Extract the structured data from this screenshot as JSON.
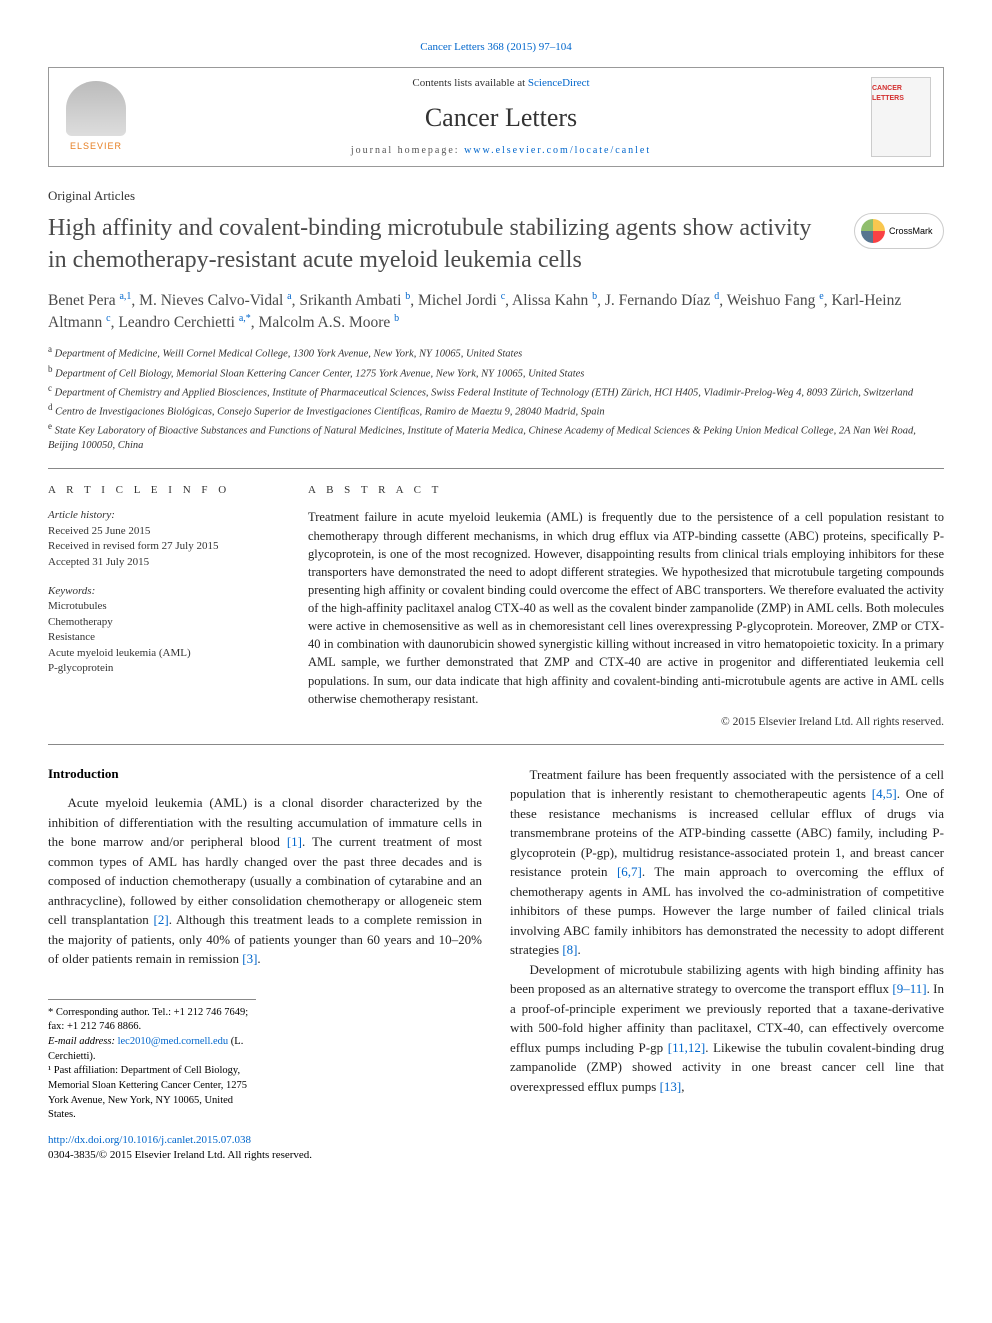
{
  "journal_ref": "Cancer Letters 368 (2015) 97–104",
  "header": {
    "contents_prefix": "Contents lists available at ",
    "contents_link": "ScienceDirect",
    "journal_title": "Cancer Letters",
    "homepage_prefix": "journal homepage: ",
    "homepage_link": "www.elsevier.com/locate/canlet",
    "elsevier_label": "ELSEVIER",
    "cover_label": "CANCER LETTERS"
  },
  "article_type": "Original Articles",
  "title": "High affinity and covalent-binding microtubule stabilizing agents show activity in chemotherapy-resistant acute myeloid leukemia cells",
  "crossmark": "CrossMark",
  "authors_html": "Benet Pera <sup>a,1</sup>, M. Nieves Calvo-Vidal <sup>a</sup>, Srikanth Ambati <sup>b</sup>, Michel Jordi <sup>c</sup>, Alissa Kahn <sup>b</sup>, J. Fernando Díaz <sup>d</sup>, Weishuo Fang <sup>e</sup>, Karl-Heinz Altmann <sup>c</sup>, Leandro Cerchietti <sup>a,*</sup>, Malcolm A.S. Moore <sup>b</sup>",
  "affiliations": [
    {
      "sup": "a",
      "text": "Department of Medicine, Weill Cornel Medical College, 1300 York Avenue, New York, NY 10065, United States"
    },
    {
      "sup": "b",
      "text": "Department of Cell Biology, Memorial Sloan Kettering Cancer Center, 1275 York Avenue, New York, NY 10065, United States"
    },
    {
      "sup": "c",
      "text": "Department of Chemistry and Applied Biosciences, Institute of Pharmaceutical Sciences, Swiss Federal Institute of Technology (ETH) Zürich, HCI H405, Vladimir-Prelog-Weg 4, 8093 Zürich, Switzerland"
    },
    {
      "sup": "d",
      "text": "Centro de Investigaciones Biológicas, Consejo Superior de Investigaciones Científicas, Ramiro de Maeztu 9, 28040 Madrid, Spain"
    },
    {
      "sup": "e",
      "text": "State Key Laboratory of Bioactive Substances and Functions of Natural Medicines, Institute of Materia Medica, Chinese Academy of Medical Sciences & Peking Union Medical College, 2A Nan Wei Road, Beijing 100050, China"
    }
  ],
  "info": {
    "heading": "A R T I C L E   I N F O",
    "history_heading": "Article history:",
    "history": [
      "Received 25 June 2015",
      "Received in revised form 27 July 2015",
      "Accepted 31 July 2015"
    ],
    "keywords_heading": "Keywords:",
    "keywords": [
      "Microtubules",
      "Chemotherapy",
      "Resistance",
      "Acute myeloid leukemia (AML)",
      "P-glycoprotein"
    ]
  },
  "abstract": {
    "heading": "A B S T R A C T",
    "text": "Treatment failure in acute myeloid leukemia (AML) is frequently due to the persistence of a cell population resistant to chemotherapy through different mechanisms, in which drug efflux via ATP-binding cassette (ABC) proteins, specifically P-glycoprotein, is one of the most recognized. However, disappointing results from clinical trials employing inhibitors for these transporters have demonstrated the need to adopt different strategies. We hypothesized that microtubule targeting compounds presenting high affinity or covalent binding could overcome the effect of ABC transporters. We therefore evaluated the activity of the high-affinity paclitaxel analog CTX-40 as well as the covalent binder zampanolide (ZMP) in AML cells. Both molecules were active in chemosensitive as well as in chemoresistant cell lines overexpressing P-glycoprotein. Moreover, ZMP or CTX-40 in combination with daunorubicin showed synergistic killing without increased in vitro hematopoietic toxicity. In a primary AML sample, we further demonstrated that ZMP and CTX-40 are active in progenitor and differentiated leukemia cell populations. In sum, our data indicate that high affinity and covalent-binding anti-microtubule agents are active in AML cells otherwise chemotherapy resistant.",
    "copyright": "© 2015 Elsevier Ireland Ltd. All rights reserved."
  },
  "body": {
    "intro_heading": "Introduction",
    "left_paras": [
      "Acute myeloid leukemia (AML) is a clonal disorder characterized by the inhibition of differentiation with the resulting accumulation of immature cells in the bone marrow and/or peripheral blood <a class='ref-link' href='#'>[1]</a>. The current treatment of most common types of AML has hardly changed over the past three decades and is composed of induction chemotherapy (usually a combination of cytarabine and an anthracycline), followed by either consolidation chemotherapy or allogeneic stem cell transplantation <a class='ref-link' href='#'>[2]</a>. Although this treatment leads to a complete remission in the majority of patients, only 40% of patients younger than 60 years and 10–20% of older patients remain in remission <a class='ref-link' href='#'>[3]</a>."
    ],
    "right_paras": [
      "Treatment failure has been frequently associated with the persistence of a cell population that is inherently resistant to chemotherapeutic agents <a class='ref-link' href='#'>[4,5]</a>. One of these resistance mechanisms is increased cellular efflux of drugs via transmembrane proteins of the ATP-binding cassette (ABC) family, including P-glycoprotein (P-gp), multidrug resistance-associated protein 1, and breast cancer resistance protein <a class='ref-link' href='#'>[6,7]</a>. The main approach to overcoming the efflux of chemotherapy agents in AML has involved the co-administration of competitive inhibitors of these pumps. However the large number of failed clinical trials involving ABC family inhibitors has demonstrated the necessity to adopt different strategies <a class='ref-link' href='#'>[8]</a>.",
      "Development of microtubule stabilizing agents with high binding affinity has been proposed as an alternative strategy to overcome the transport efflux <a class='ref-link' href='#'>[9–11]</a>. In a proof-of-principle experiment we previously reported that a taxane-derivative with 500-fold higher affinity than paclitaxel, CTX-40, can effectively overcome efflux pumps including P-gp <a class='ref-link' href='#'>[11,12]</a>. Likewise the tubulin covalent-binding drug zampanolide (ZMP) showed activity in one breast cancer cell line that overexpressed efflux pumps <a class='ref-link' href='#'>[13]</a>,"
    ]
  },
  "footnotes": {
    "corresponding": "* Corresponding author. Tel.: +1 212 746 7649; fax: +1 212 746 8866.",
    "email_label": "E-mail address: ",
    "email": "lec2010@med.cornell.edu",
    "email_suffix": " (L. Cerchietti).",
    "past_affil": "¹ Past affiliation: Department of Cell Biology, Memorial Sloan Kettering Cancer Center, 1275 York Avenue, New York, NY 10065, United States."
  },
  "doi": {
    "link": "http://dx.doi.org/10.1016/j.canlet.2015.07.038",
    "issn_line": "0304-3835/© 2015 Elsevier Ireland Ltd. All rights reserved."
  },
  "colors": {
    "link": "#0066cc",
    "text": "#222222",
    "heading": "#4a4a4a",
    "border": "#888888"
  }
}
